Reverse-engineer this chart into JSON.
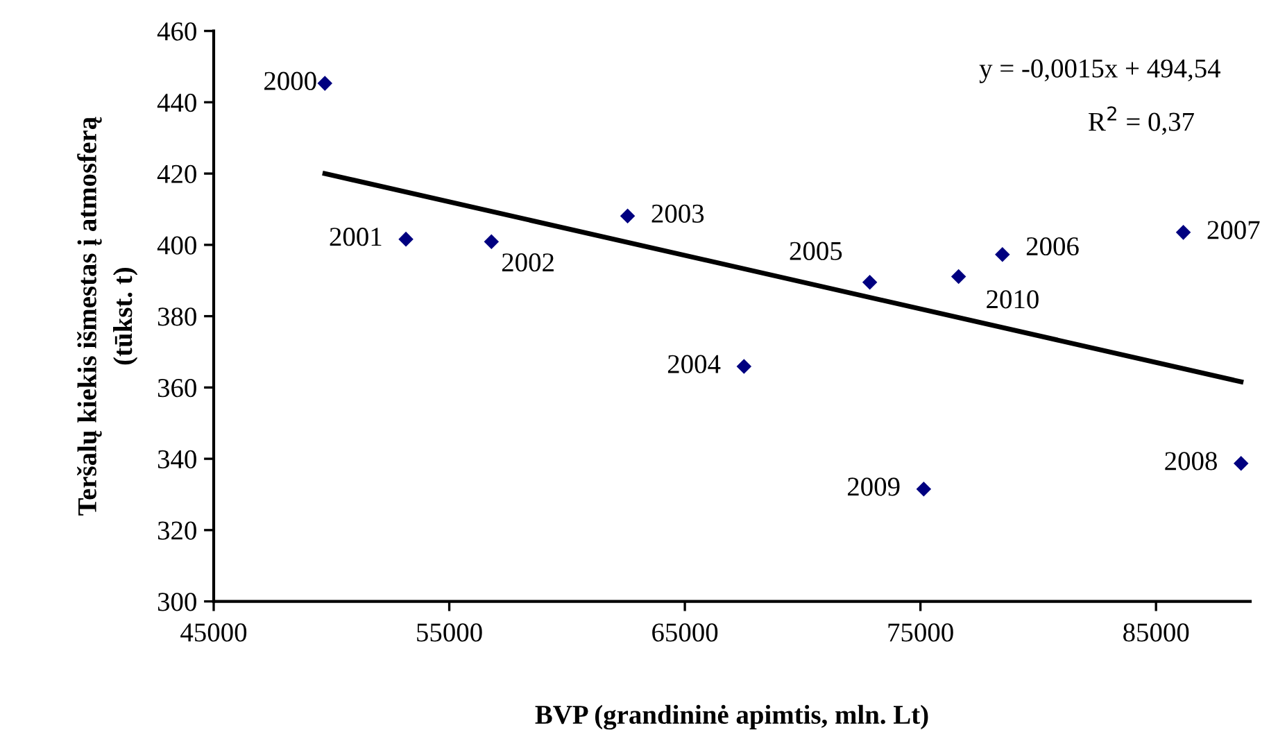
{
  "chart_data": {
    "type": "scatter",
    "xlabel": "BVP (grandininė apimtis, mln. Lt)",
    "ylabel": "Teršalų kiekis išmestas į atmosferą\n(tūkst. t)",
    "x": [
      49720,
      53160,
      56790,
      62570,
      67510,
      72850,
      78480,
      86160,
      88610,
      75140,
      76620
    ],
    "series": [
      {
        "color": "#000080",
        "marker": "diamond",
        "values": [
          445.3,
          401.6,
          400.9,
          408.1,
          365.9,
          389.5,
          397.3,
          403.5,
          338.7,
          331.5,
          391.1
        ]
      },
      {
        "type": "line",
        "color": "#000000",
        "line_style": "solid",
        "x": [
          49720,
          88610
        ],
        "values": [
          420.0,
          361.6
        ]
      }
    ],
    "xlim": [
      45000,
      89000
    ],
    "xticks": [
      45000,
      55000,
      65000,
      75000,
      85000
    ],
    "ylim": [
      300,
      460
    ],
    "yticks": [
      300,
      320,
      340,
      360,
      380,
      400,
      420,
      440,
      460
    ],
    "grid": false,
    "annotations": [
      {
        "text": "2000",
        "x": 49720,
        "y": 445.3
      },
      {
        "text": "2001",
        "x": 53160,
        "y": 401.6
      },
      {
        "text": "2002",
        "x": 56790,
        "y": 400.9
      },
      {
        "text": "2003",
        "x": 62570,
        "y": 408.1
      },
      {
        "text": "2004",
        "x": 67510,
        "y": 365.9
      },
      {
        "text": "2005",
        "x": 72850,
        "y": 389.5
      },
      {
        "text": "2006",
        "x": 78480,
        "y": 397.3
      },
      {
        "text": "2007",
        "x": 86160,
        "y": 403.5
      },
      {
        "text": "2008",
        "x": 88610,
        "y": 338.7
      },
      {
        "text": "2009",
        "x": 75140,
        "y": 331.5
      },
      {
        "text": "2010",
        "x": 76620,
        "y": 391.1
      },
      "y = -0,0015x + 494,54",
      "R$^{2}$ = 0,37"
    ]
  }
}
